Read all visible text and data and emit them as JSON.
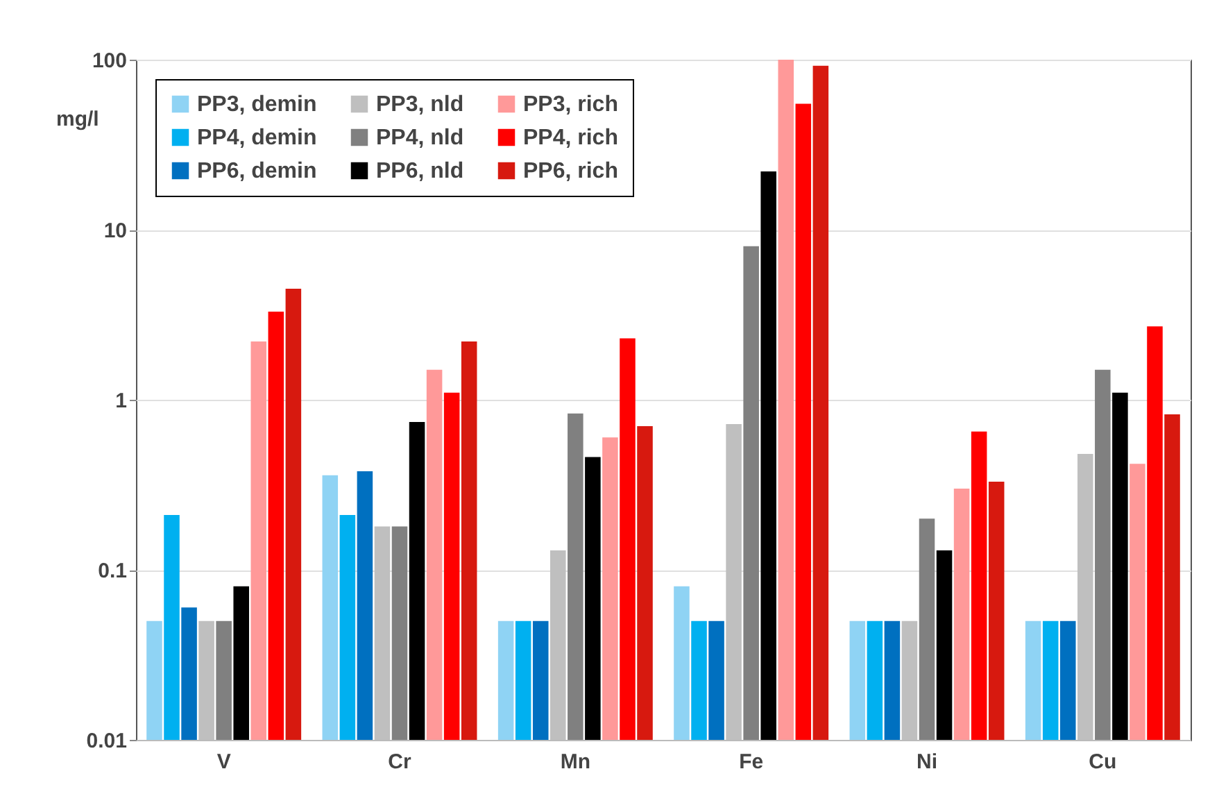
{
  "chart_data": {
    "type": "bar",
    "ylabel": "mg/l",
    "categories": [
      "V",
      "Cr",
      "Mn",
      "Fe",
      "Ni",
      "Cu"
    ],
    "series": [
      {
        "name": "PP3, demin",
        "color": "#8fd3f4",
        "values": [
          0.05,
          0.36,
          0.05,
          0.08,
          0.05,
          0.05
        ]
      },
      {
        "name": "PP4, demin",
        "color": "#00b0f0",
        "values": [
          0.21,
          0.21,
          0.05,
          0.05,
          0.05,
          0.05
        ]
      },
      {
        "name": "PP6, demin",
        "color": "#0070c0",
        "values": [
          0.06,
          0.38,
          0.05,
          0.05,
          0.05,
          0.05
        ]
      },
      {
        "name": "PP3, nld",
        "color": "#bfbfbf",
        "values": [
          0.05,
          0.18,
          0.13,
          0.72,
          0.05,
          0.48
        ]
      },
      {
        "name": "PP4, nld",
        "color": "#808080",
        "values": [
          0.05,
          0.18,
          0.83,
          8,
          0.2,
          1.5
        ]
      },
      {
        "name": "PP6, nld",
        "color": "#000000",
        "values": [
          0.08,
          0.74,
          0.46,
          22,
          0.13,
          1.1
        ]
      },
      {
        "name": "PP3, rich",
        "color": "#ff9999",
        "values": [
          2.2,
          1.5,
          0.6,
          100,
          0.3,
          0.42
        ]
      },
      {
        "name": "PP4, rich",
        "color": "#ff0000",
        "values": [
          3.3,
          1.1,
          2.3,
          55,
          0.65,
          2.7
        ]
      },
      {
        "name": "PP6, rich",
        "color": "#d7190f",
        "values": [
          4.5,
          2.2,
          0.7,
          92,
          0.33,
          0.82
        ]
      }
    ],
    "log": "y",
    "ylim": [
      0.01,
      100
    ],
    "yticks": [
      0.01,
      0.1,
      1,
      10,
      100
    ],
    "grid": "y",
    "legend": "top left"
  }
}
